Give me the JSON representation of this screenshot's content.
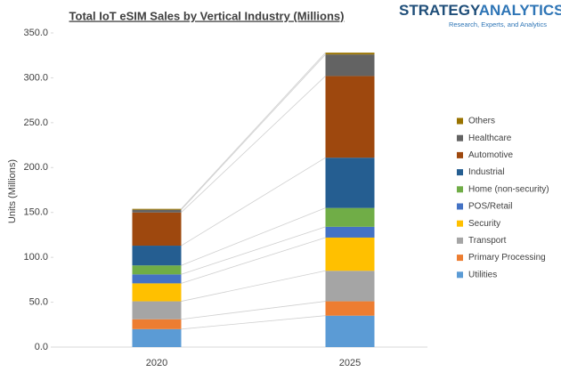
{
  "chart_data": {
    "type": "stacked_bar",
    "title": "Total IoT eSIM Sales by Vertical Industry (Millions)",
    "ylabel": "Units (Millions)",
    "categories": [
      "2020",
      "2025"
    ],
    "series": [
      {
        "name": "Utilities",
        "color": "#5b9bd5",
        "values": [
          20,
          35
        ]
      },
      {
        "name": "Primary Processing",
        "color": "#ed7d31",
        "values": [
          11,
          16
        ]
      },
      {
        "name": "Transport",
        "color": "#a5a5a5",
        "values": [
          20,
          34
        ]
      },
      {
        "name": "Security",
        "color": "#ffc000",
        "values": [
          20,
          37
        ]
      },
      {
        "name": "POS/Retail",
        "color": "#4472c4",
        "values": [
          10,
          12
        ]
      },
      {
        "name": "Home (non-security)",
        "color": "#70ad47",
        "values": [
          10,
          21
        ]
      },
      {
        "name": "Industrial",
        "color": "#255e91",
        "values": [
          22,
          56
        ]
      },
      {
        "name": "Automotive",
        "color": "#9e480e",
        "values": [
          37,
          91
        ]
      },
      {
        "name": "Healthcare",
        "color": "#636363",
        "values": [
          3,
          24
        ]
      },
      {
        "name": "Others",
        "color": "#997300",
        "values": [
          1,
          2
        ]
      }
    ],
    "ylim": [
      0,
      350
    ],
    "yticks": [
      {
        "value": 0,
        "label": "0.0"
      },
      {
        "value": 50,
        "label": "50.0"
      },
      {
        "value": 100,
        "label": "100.0"
      },
      {
        "value": 150,
        "label": "150.0"
      },
      {
        "value": 200,
        "label": "200.0"
      },
      {
        "value": 250,
        "label": "250.0"
      },
      {
        "value": 300,
        "label": "300.0"
      },
      {
        "value": 350,
        "label": "350.0"
      }
    ],
    "legend": "right"
  },
  "logo": {
    "brand_a": "STRATEGY",
    "brand_b": "ANALYTICS",
    "tagline": "Research, Experts, and Analytics"
  }
}
